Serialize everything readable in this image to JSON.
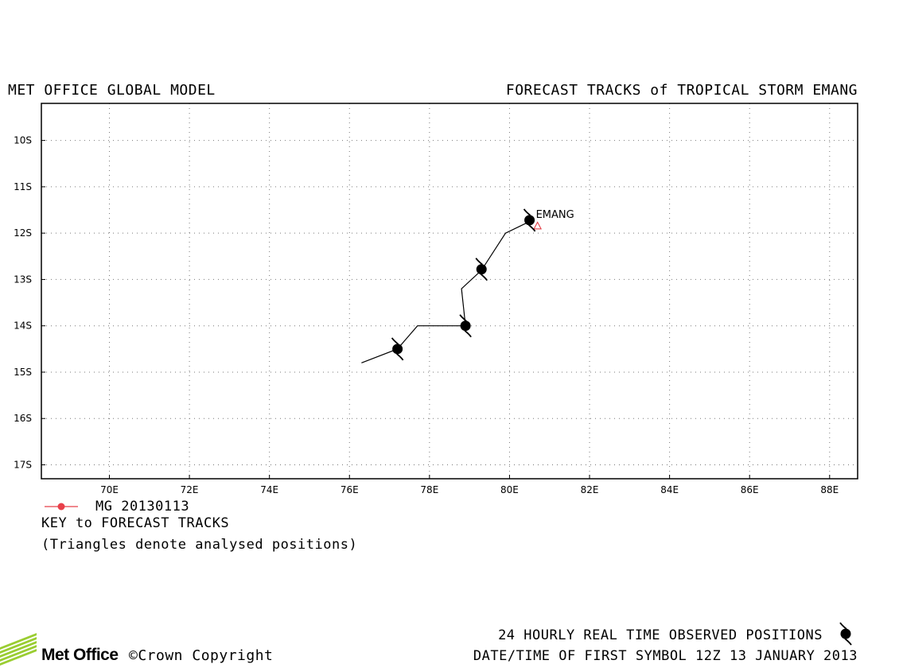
{
  "header": {
    "left_title": "MET OFFICE GLOBAL MODEL",
    "right_title": "FORECAST TRACKS of TROPICAL STORM EMANG"
  },
  "map": {
    "lon_range": [
      68.3,
      88.7
    ],
    "lat_range": [
      -17.3,
      -9.2
    ],
    "lon_ticks": [
      70,
      72,
      74,
      76,
      78,
      80,
      82,
      84,
      86,
      88
    ],
    "lon_labels": [
      "70E",
      "72E",
      "74E",
      "76E",
      "78E",
      "80E",
      "82E",
      "84E",
      "86E",
      "88E"
    ],
    "lat_ticks": [
      -10,
      -11,
      -12,
      -13,
      -14,
      -15,
      -16,
      -17
    ],
    "lat_labels": [
      "10S",
      "11S",
      "12S",
      "13S",
      "14S",
      "15S",
      "16S",
      "17S"
    ],
    "grid": true,
    "storm_label": "EMANG",
    "track_color": "#000000",
    "triangle_color": "#e0303a",
    "track": [
      [
        80.5,
        -11.75
      ],
      [
        79.9,
        -12.0
      ],
      [
        79.3,
        -12.8
      ],
      [
        78.8,
        -13.2
      ],
      [
        78.9,
        -14.0
      ],
      [
        77.7,
        -14.0
      ],
      [
        77.2,
        -14.5
      ],
      [
        76.3,
        -14.8
      ]
    ],
    "observed_positions": [
      [
        80.5,
        -11.72
      ],
      [
        79.3,
        -12.78
      ],
      [
        78.9,
        -14.0
      ],
      [
        77.2,
        -14.5
      ]
    ],
    "analysed_position": [
      80.7,
      -11.85
    ]
  },
  "legend": {
    "label": "MG 20130113",
    "color": "#e8404a"
  },
  "key": {
    "title": "KEY to FORECAST TRACKS",
    "note": "(Triangles denote analysed positions)"
  },
  "footer": {
    "observed_text": "24 HOURLY REAL TIME OBSERVED POSITIONS",
    "datetime_text": "DATE/TIME OF FIRST SYMBOL 12Z 13 JANUARY 2013",
    "logo_text": "Met Office",
    "copyright_text": "©Crown Copyright",
    "logo_color": "#9acd32"
  }
}
